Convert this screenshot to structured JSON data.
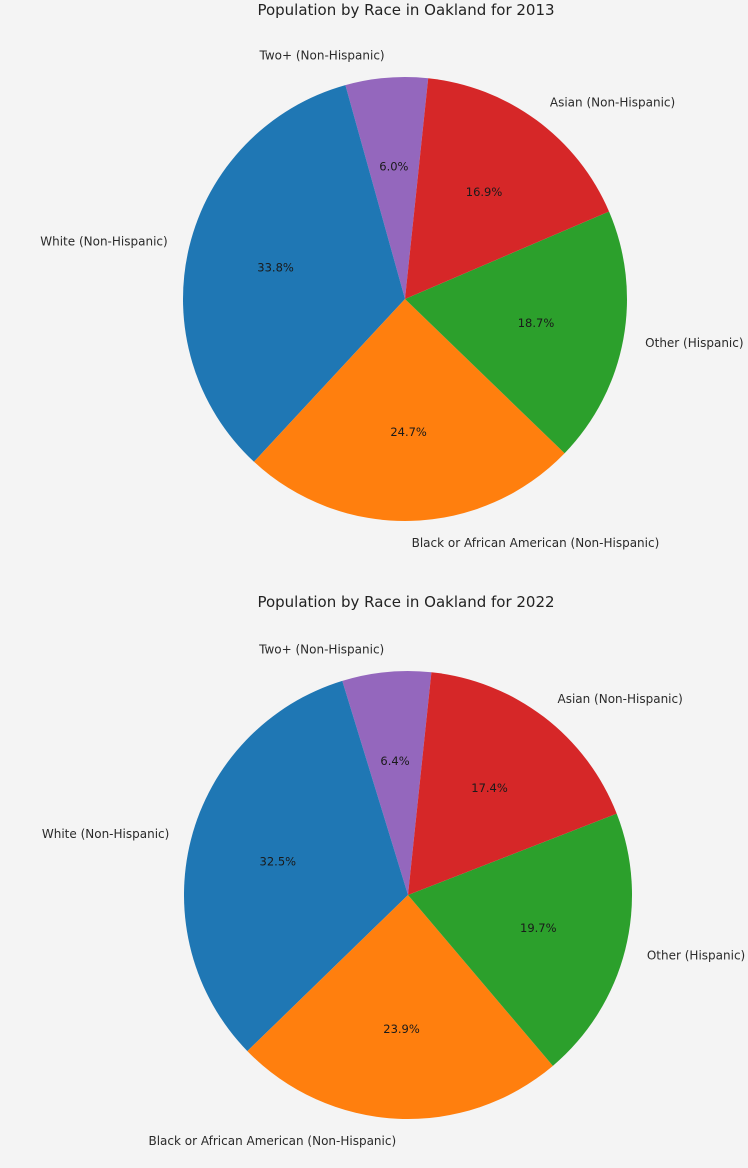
{
  "chart_data": [
    {
      "type": "pie",
      "title": "Population by Race in Oakland for 2013",
      "slices": [
        {
          "label": "Two+ (Non-Hispanic)",
          "value": 6.0,
          "pct_label": "6.0%",
          "color": "#9467bd"
        },
        {
          "label": "White (Non-Hispanic)",
          "value": 33.8,
          "pct_label": "33.8%",
          "color": "#1f77b4"
        },
        {
          "label": "Black or African American (Non-Hispanic)",
          "value": 24.7,
          "pct_label": "24.7%",
          "color": "#ff7f0e"
        },
        {
          "label": "Other (Hispanic)",
          "value": 18.7,
          "pct_label": "18.7%",
          "color": "#2ca02c"
        },
        {
          "label": "Asian (Non-Hispanic)",
          "value": 16.9,
          "pct_label": "16.9%",
          "color": "#d62728"
        }
      ]
    },
    {
      "type": "pie",
      "title": "Population by Race in Oakland for 2022",
      "slices": [
        {
          "label": "Two+ (Non-Hispanic)",
          "value": 6.4,
          "pct_label": "6.4%",
          "color": "#9467bd"
        },
        {
          "label": "White (Non-Hispanic)",
          "value": 32.5,
          "pct_label": "32.5%",
          "color": "#1f77b4"
        },
        {
          "label": "Black or African American (Non-Hispanic)",
          "value": 23.9,
          "pct_label": "23.9%",
          "color": "#ff7f0e"
        },
        {
          "label": "Other (Hispanic)",
          "value": 19.7,
          "pct_label": "19.7%",
          "color": "#2ca02c"
        },
        {
          "label": "Asian (Non-Hispanic)",
          "value": 17.4,
          "pct_label": "17.4%",
          "color": "#d62728"
        }
      ]
    }
  ]
}
